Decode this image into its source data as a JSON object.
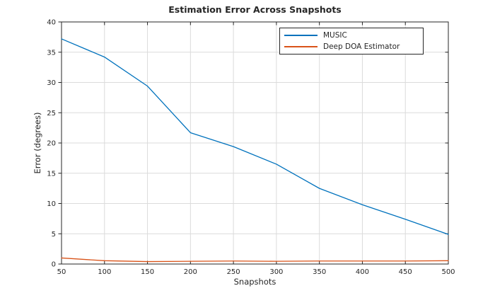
{
  "figure": {
    "background": "#ffffff",
    "axes_color": "#262626",
    "grid_color": "#dbdbdb",
    "tick_label_color": "#262626"
  },
  "chart_data": {
    "type": "line",
    "title": "Estimation Error Across Snapshots",
    "xlabel": "Snapshots",
    "ylabel": "Error (degrees)",
    "x": [
      50,
      100,
      150,
      200,
      250,
      300,
      350,
      400,
      450,
      500
    ],
    "series": [
      {
        "name": "MUSIC",
        "color": "#0072BD",
        "values": [
          37.2,
          34.2,
          29.4,
          21.7,
          19.4,
          16.5,
          12.5,
          9.8,
          7.4,
          4.9
        ]
      },
      {
        "name": "Deep DOA Estimator",
        "color": "#D95319",
        "values": [
          1.0,
          0.55,
          0.4,
          0.45,
          0.5,
          0.45,
          0.5,
          0.5,
          0.5,
          0.55
        ]
      }
    ],
    "xlim": [
      50,
      500
    ],
    "ylim": [
      0,
      40
    ],
    "xticks": [
      50,
      100,
      150,
      200,
      250,
      300,
      350,
      400,
      450,
      500
    ],
    "yticks": [
      0,
      5,
      10,
      15,
      20,
      25,
      30,
      35,
      40
    ],
    "grid": true,
    "box": true,
    "legend_position": "upper-right-inside"
  }
}
